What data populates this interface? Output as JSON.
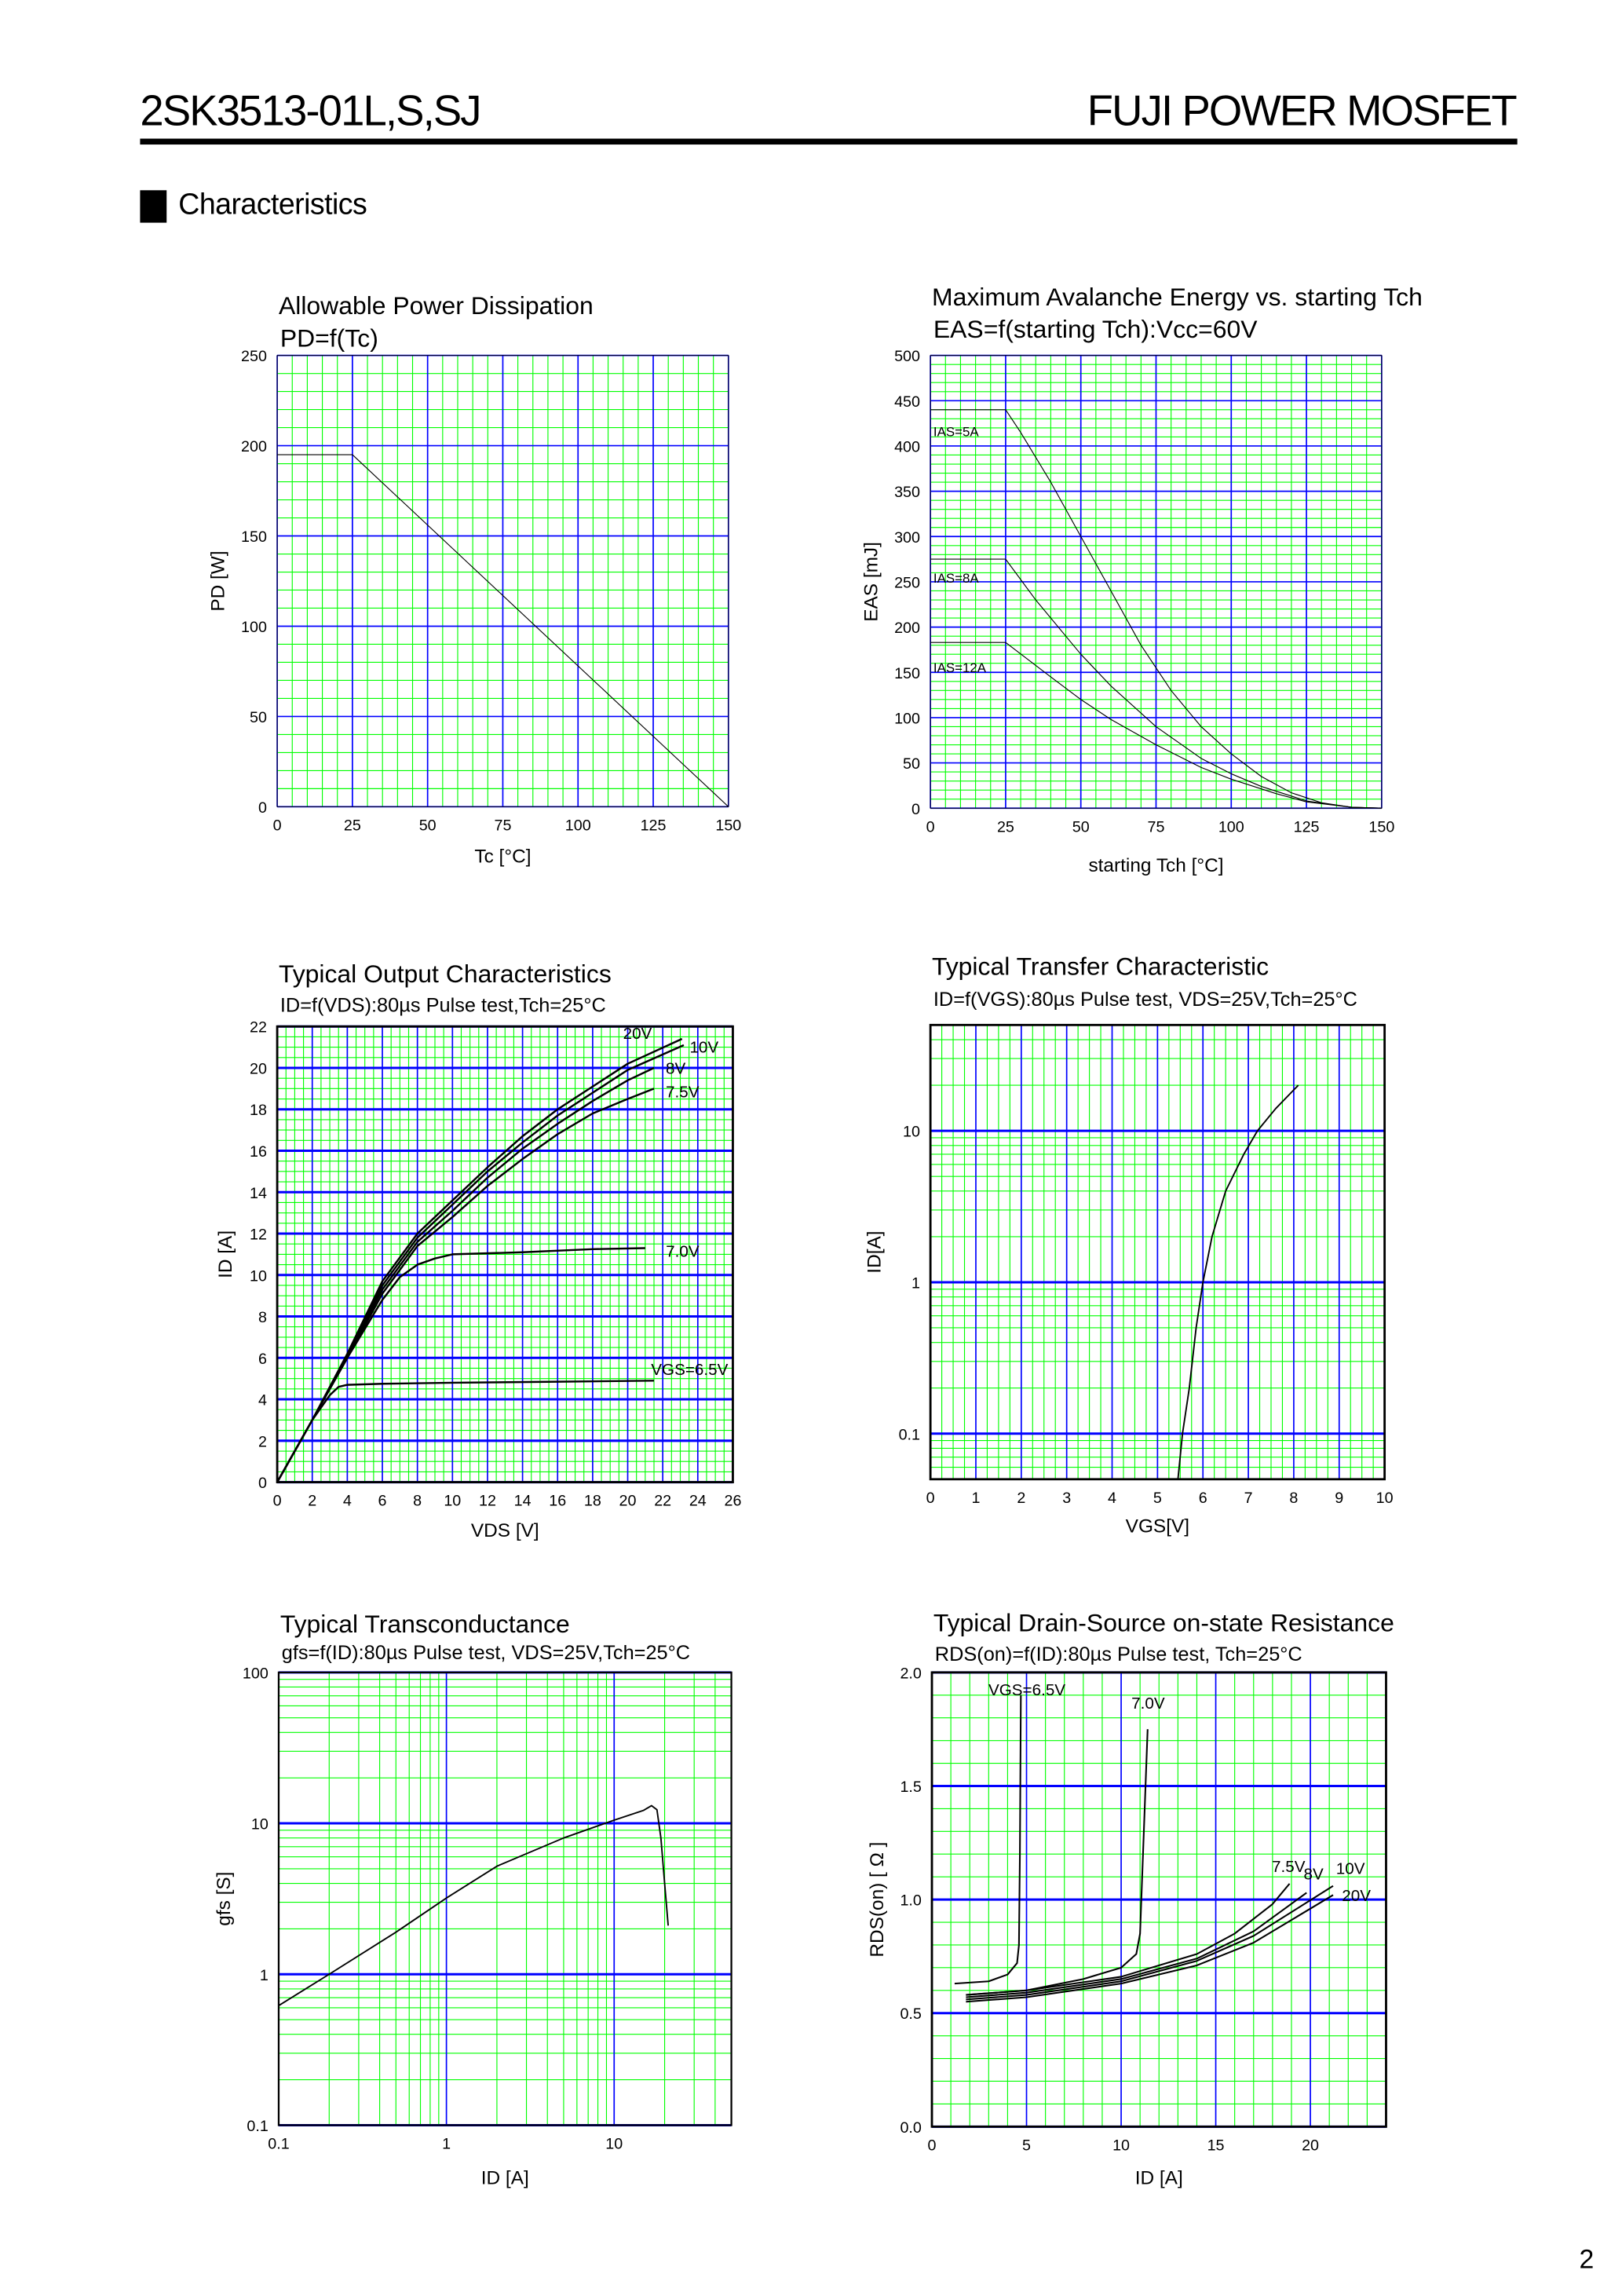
{
  "header": {
    "part_number": "2SK3513-01L,S,SJ",
    "brand": "FUJI POWER MOSFET",
    "section_title": "Characteristics",
    "page_number": "2"
  },
  "colors": {
    "minor_grid": "#00ff00",
    "major_grid": "#0000ff",
    "curve": "#000000"
  },
  "chart_data": [
    {
      "type": "line",
      "title": "Allowable Power Dissipation",
      "subtitle": "PD=f(Tc)",
      "xlabel": "Tc [°C]",
      "ylabel": "PD [W]",
      "xscale": "linear",
      "yscale": "linear",
      "xlim": [
        0,
        150
      ],
      "ylim": [
        0,
        250
      ],
      "grid": true,
      "xticks": [
        "0",
        "25",
        "50",
        "75",
        "100",
        "125",
        "150"
      ],
      "yticks": [
        "0",
        "50",
        "100",
        "150",
        "200",
        "250"
      ],
      "series": [
        {
          "points": [
            [
              0,
              195
            ],
            [
              25,
              195
            ],
            [
              150,
              0
            ]
          ]
        }
      ]
    },
    {
      "type": "line",
      "title": "Maximum Avalanche Energy vs. starting Tch",
      "subtitle": "EAS=f(starting Tch):Vcc=60V",
      "xlabel": "starting Tch [°C]",
      "ylabel": "EAS [mJ]",
      "xscale": "linear",
      "yscale": "linear",
      "xlim": [
        0,
        150
      ],
      "ylim": [
        0,
        500
      ],
      "grid": true,
      "xticks": [
        "0",
        "25",
        "50",
        "75",
        "100",
        "125",
        "150"
      ],
      "yticks": [
        "0",
        "50",
        "100",
        "150",
        "200",
        "250",
        "300",
        "350",
        "400",
        "450",
        "500"
      ],
      "series": [
        {
          "name": "IAS=5A",
          "points": [
            [
              0,
              440
            ],
            [
              25,
              440
            ],
            [
              30,
              415
            ],
            [
              40,
              360
            ],
            [
              50,
              300
            ],
            [
              60,
              240
            ],
            [
              70,
              180
            ],
            [
              80,
              130
            ],
            [
              90,
              90
            ],
            [
              100,
              60
            ],
            [
              110,
              35
            ],
            [
              120,
              17
            ],
            [
              130,
              6
            ],
            [
              140,
              1
            ],
            [
              150,
              0
            ]
          ]
        },
        {
          "name": "IAS=8A",
          "points": [
            [
              0,
              275
            ],
            [
              25,
              275
            ],
            [
              35,
              230
            ],
            [
              50,
              170
            ],
            [
              60,
              135
            ],
            [
              75,
              90
            ],
            [
              90,
              55
            ],
            [
              100,
              38
            ],
            [
              110,
              24
            ],
            [
              125,
              8
            ],
            [
              140,
              1
            ],
            [
              150,
              0
            ]
          ]
        },
        {
          "name": "IAS=12A",
          "points": [
            [
              0,
              183
            ],
            [
              25,
              183
            ],
            [
              40,
              145
            ],
            [
              50,
              120
            ],
            [
              60,
              98
            ],
            [
              75,
              70
            ],
            [
              90,
              45
            ],
            [
              100,
              32
            ],
            [
              115,
              16
            ],
            [
              125,
              7
            ],
            [
              140,
              1
            ],
            [
              150,
              0
            ]
          ]
        }
      ]
    },
    {
      "type": "line",
      "title": "Typical Output Characteristics",
      "subtitle": "ID=f(VDS):80µs Pulse test,Tch=25°C",
      "xlabel": "VDS [V]",
      "ylabel": "ID [A]",
      "xscale": "linear",
      "yscale": "linear",
      "xlim": [
        0,
        26
      ],
      "ylim": [
        0,
        22
      ],
      "grid": true,
      "xticks": [
        "0",
        "2",
        "4",
        "6",
        "8",
        "10",
        "12",
        "14",
        "16",
        "18",
        "20",
        "22",
        "24",
        "26"
      ],
      "yticks": [
        "0",
        "2",
        "4",
        "6",
        "8",
        "10",
        "12",
        "14",
        "16",
        "18",
        "20",
        "22"
      ],
      "series": [
        {
          "name": "20V",
          "points": [
            [
              0,
              0
            ],
            [
              2,
              3
            ],
            [
              4,
              6.2
            ],
            [
              6,
              9.7
            ],
            [
              8,
              12
            ],
            [
              10,
              13.6
            ],
            [
              12,
              15.2
            ],
            [
              14,
              16.7
            ],
            [
              16,
              18
            ],
            [
              18,
              19.1
            ],
            [
              20,
              20.2
            ],
            [
              23.1,
              21.4
            ]
          ]
        },
        {
          "name": "10V",
          "points": [
            [
              0,
              0
            ],
            [
              2,
              3
            ],
            [
              4,
              6.1
            ],
            [
              6,
              9.5
            ],
            [
              8,
              11.8
            ],
            [
              10,
              13.4
            ],
            [
              12,
              15
            ],
            [
              14,
              16.4
            ],
            [
              16,
              17.7
            ],
            [
              18,
              18.8
            ],
            [
              20,
              19.9
            ],
            [
              23.2,
              21.1
            ]
          ]
        },
        {
          "name": "8V",
          "points": [
            [
              0,
              0
            ],
            [
              2,
              3
            ],
            [
              4,
              6.1
            ],
            [
              6,
              9.3
            ],
            [
              8,
              11.6
            ],
            [
              10,
              13.1
            ],
            [
              12,
              14.7
            ],
            [
              14,
              16.1
            ],
            [
              16,
              17.3
            ],
            [
              18,
              18.4
            ],
            [
              20,
              19.4
            ],
            [
              21.5,
              20.0
            ]
          ]
        },
        {
          "name": "7.5V",
          "points": [
            [
              0,
              0
            ],
            [
              2,
              3
            ],
            [
              4,
              6
            ],
            [
              6,
              9.1
            ],
            [
              8,
              11.4
            ],
            [
              10,
              12.8
            ],
            [
              12,
              14.3
            ],
            [
              14,
              15.6
            ],
            [
              16,
              16.8
            ],
            [
              18,
              17.8
            ],
            [
              20,
              18.5
            ],
            [
              21.5,
              19.0
            ]
          ]
        },
        {
          "name": "7.0V",
          "points": [
            [
              0,
              0
            ],
            [
              2,
              3
            ],
            [
              4,
              6
            ],
            [
              6,
              8.8
            ],
            [
              7,
              9.9
            ],
            [
              8,
              10.5
            ],
            [
              9,
              10.8
            ],
            [
              10,
              11.0
            ],
            [
              14,
              11.1
            ],
            [
              18,
              11.25
            ],
            [
              21,
              11.3
            ]
          ]
        },
        {
          "name": "VGS=6.5V",
          "points": [
            [
              0,
              0
            ],
            [
              2,
              3
            ],
            [
              3,
              4.2
            ],
            [
              3.5,
              4.6
            ],
            [
              4,
              4.7
            ],
            [
              6,
              4.75
            ],
            [
              10,
              4.8
            ],
            [
              16,
              4.85
            ],
            [
              21.5,
              4.9
            ]
          ]
        }
      ]
    },
    {
      "type": "line",
      "title": "Typical Transfer Characteristic",
      "subtitle": "ID=f(VGS):80µs Pulse test, VDS=25V,Tch=25°C",
      "xlabel": "VGS[V]",
      "ylabel": "ID[A]",
      "xscale": "linear",
      "yscale": "log",
      "xlim": [
        0,
        10
      ],
      "ylim": [
        0.05,
        50
      ],
      "grid": true,
      "xticks": [
        "0",
        "1",
        "2",
        "3",
        "4",
        "5",
        "6",
        "7",
        "8",
        "9",
        "10"
      ],
      "yticks": [
        "0.1",
        "1",
        "10"
      ],
      "series": [
        {
          "points": [
            [
              5.45,
              0.05
            ],
            [
              5.55,
              0.1
            ],
            [
              5.7,
              0.2
            ],
            [
              5.85,
              0.5
            ],
            [
              6.0,
              1
            ],
            [
              6.2,
              2
            ],
            [
              6.5,
              4
            ],
            [
              6.9,
              7
            ],
            [
              7.2,
              10
            ],
            [
              7.6,
              14
            ],
            [
              8.1,
              20
            ]
          ]
        }
      ]
    },
    {
      "type": "line",
      "title": "Typical Transconductance",
      "subtitle": "gfs=f(ID):80µs Pulse test, VDS=25V,Tch=25°C",
      "xlabel": "ID [A]",
      "ylabel": "gfs [S]",
      "xscale": "log",
      "yscale": "log",
      "xlim": [
        0.1,
        50
      ],
      "ylim": [
        0.1,
        100
      ],
      "grid": true,
      "xticks": [
        "0.1",
        "1",
        "10"
      ],
      "yticks": [
        "0.1",
        "1",
        "10",
        "100"
      ],
      "series": [
        {
          "points": [
            [
              0.1,
              0.62
            ],
            [
              0.2,
              1.0
            ],
            [
              0.5,
              1.9
            ],
            [
              1,
              3.2
            ],
            [
              2,
              5.2
            ],
            [
              5,
              8.0
            ],
            [
              10,
              10.5
            ],
            [
              15,
              12.2
            ],
            [
              16.7,
              13.1
            ],
            [
              18,
              12.3
            ],
            [
              19,
              8
            ],
            [
              20,
              4
            ],
            [
              21,
              2.1
            ]
          ]
        }
      ]
    },
    {
      "type": "line",
      "title": "Typical Drain-Source on-state Resistance",
      "subtitle": "RDS(on)=f(ID):80µs Pulse test, Tch=25°C",
      "xlabel": "ID [A]",
      "ylabel": "RDS(on) [ Ω ]",
      "xscale": "linear",
      "yscale": "linear",
      "xlim": [
        0,
        24
      ],
      "ylim": [
        0,
        2.0
      ],
      "grid": true,
      "xticks": [
        "0",
        "5",
        "10",
        "15",
        "20"
      ],
      "yticks": [
        "0.0",
        "0.5",
        "1.0",
        "1.5",
        "2.0"
      ],
      "series": [
        {
          "name": "VGS=6.5V",
          "points": [
            [
              1.2,
              0.63
            ],
            [
              3,
              0.64
            ],
            [
              4,
              0.67
            ],
            [
              4.5,
              0.72
            ],
            [
              4.6,
              0.8
            ],
            [
              4.65,
              1.2
            ],
            [
              4.7,
              1.9
            ]
          ]
        },
        {
          "name": "7.0V",
          "points": [
            [
              1.8,
              0.58
            ],
            [
              5,
              0.6
            ],
            [
              8,
              0.65
            ],
            [
              10,
              0.7
            ],
            [
              10.8,
              0.76
            ],
            [
              11.0,
              0.85
            ],
            [
              11.2,
              1.3
            ],
            [
              11.4,
              1.75
            ]
          ]
        },
        {
          "name": "7.5V",
          "points": [
            [
              1.8,
              0.58
            ],
            [
              5,
              0.6
            ],
            [
              10,
              0.66
            ],
            [
              14,
              0.76
            ],
            [
              16,
              0.85
            ],
            [
              18,
              0.98
            ],
            [
              18.9,
              1.07
            ]
          ]
        },
        {
          "name": "8V",
          "points": [
            [
              1.8,
              0.57
            ],
            [
              5,
              0.59
            ],
            [
              10,
              0.65
            ],
            [
              14,
              0.74
            ],
            [
              17,
              0.86
            ],
            [
              19.8,
              1.03
            ]
          ]
        },
        {
          "name": "10V",
          "points": [
            [
              1.8,
              0.56
            ],
            [
              5,
              0.58
            ],
            [
              10,
              0.64
            ],
            [
              14,
              0.73
            ],
            [
              17,
              0.84
            ],
            [
              21.2,
              1.06
            ]
          ]
        },
        {
          "name": "20V",
          "points": [
            [
              1.8,
              0.55
            ],
            [
              5,
              0.57
            ],
            [
              10,
              0.63
            ],
            [
              14,
              0.71
            ],
            [
              17,
              0.81
            ],
            [
              21.2,
              1.02
            ]
          ]
        }
      ]
    }
  ]
}
